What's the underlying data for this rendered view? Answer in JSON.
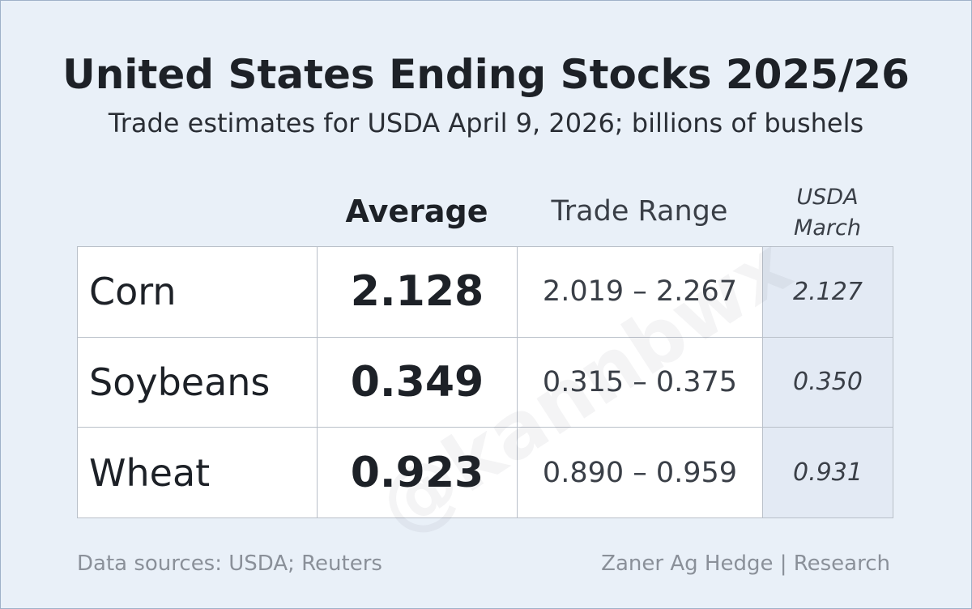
{
  "header": {
    "title": "United States Ending Stocks 2025/26",
    "subtitle": "Trade estimates for USDA April 9, 2026; billions of bushels"
  },
  "table": {
    "columns": [
      "Average",
      "Trade Range",
      "USDA March"
    ],
    "rows": [
      [
        "Corn",
        "2.128",
        "2.019 – 2.267",
        "2.127"
      ],
      [
        "Soybeans",
        "0.349",
        "0.315 – 0.375",
        "0.350"
      ],
      [
        "Wheat",
        "0.923",
        "0.890 – 0.959",
        "0.931"
      ]
    ]
  },
  "watermark": "@kannbwx",
  "footer": {
    "source": "Data sources: USDA; Reuters",
    "credit": "Zaner Ag Hedge | Research"
  }
}
